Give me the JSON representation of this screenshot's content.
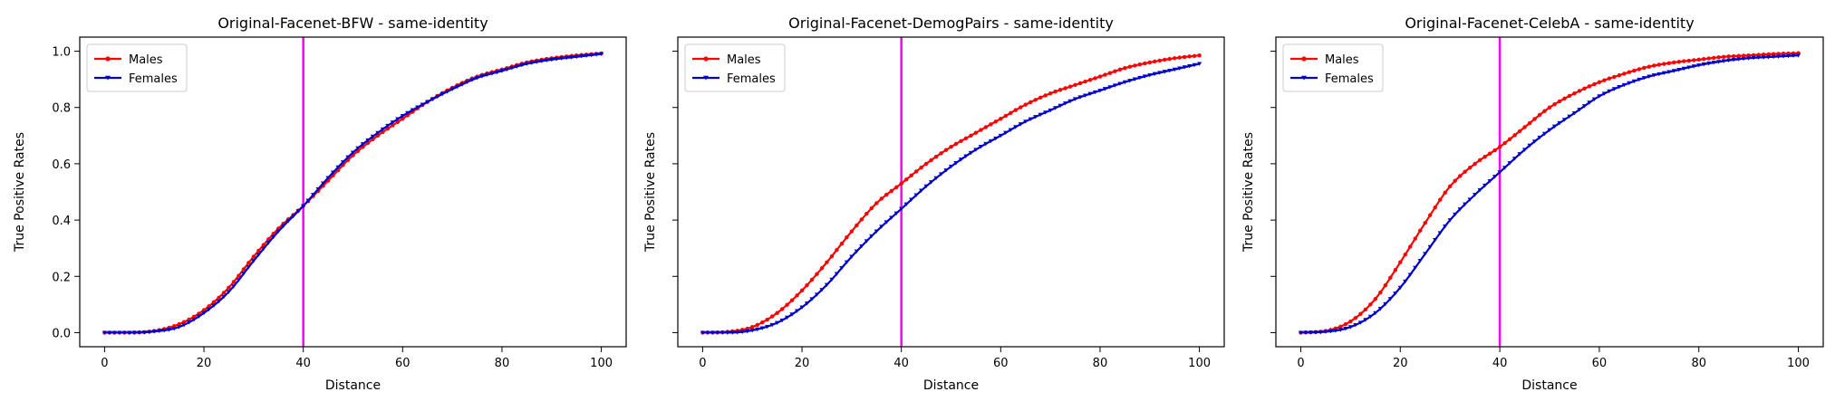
{
  "chart_data": [
    {
      "type": "line",
      "title": "Original-Facenet-BFW - same-identity",
      "xlabel": "Distance",
      "ylabel": "True Positive Rates",
      "xlim": [
        -5,
        105
      ],
      "ylim": [
        -0.05,
        1.05
      ],
      "xticks": [
        0,
        20,
        40,
        60,
        80,
        100
      ],
      "yticks": [
        0.0,
        0.2,
        0.4,
        0.6,
        0.8,
        1.0
      ],
      "show_yticklabels": true,
      "legend": "top-left",
      "threshold_line": 40,
      "x": [
        0,
        5,
        10,
        15,
        20,
        25,
        30,
        35,
        40,
        45,
        50,
        55,
        60,
        65,
        70,
        75,
        80,
        85,
        90,
        95,
        100
      ],
      "series": [
        {
          "name": "Males",
          "marker": "dot",
          "values": [
            0.0,
            0.0,
            0.006,
            0.03,
            0.08,
            0.16,
            0.27,
            0.37,
            0.45,
            0.54,
            0.63,
            0.7,
            0.76,
            0.82,
            0.87,
            0.91,
            0.935,
            0.96,
            0.975,
            0.985,
            0.992
          ]
        },
        {
          "name": "Females",
          "marker": "triangle-down",
          "values": [
            0.0,
            0.0,
            0.004,
            0.02,
            0.07,
            0.145,
            0.255,
            0.36,
            0.45,
            0.55,
            0.64,
            0.71,
            0.77,
            0.82,
            0.865,
            0.905,
            0.93,
            0.955,
            0.97,
            0.98,
            0.99
          ]
        }
      ]
    },
    {
      "type": "line",
      "title": "Original-Facenet-DemogPairs - same-identity",
      "xlabel": "Distance",
      "ylabel": "True Positive Rates",
      "xlim": [
        -5,
        105
      ],
      "ylim": [
        -0.05,
        1.05
      ],
      "xticks": [
        0,
        20,
        40,
        60,
        80,
        100
      ],
      "yticks": [
        0.0,
        0.2,
        0.4,
        0.6,
        0.8,
        1.0
      ],
      "show_yticklabels": false,
      "legend": "top-left",
      "threshold_line": 40,
      "x": [
        0,
        5,
        10,
        15,
        20,
        25,
        30,
        35,
        40,
        45,
        50,
        55,
        60,
        65,
        70,
        75,
        80,
        85,
        90,
        95,
        100
      ],
      "series": [
        {
          "name": "Males",
          "marker": "dot",
          "values": [
            0.0,
            0.003,
            0.02,
            0.07,
            0.15,
            0.25,
            0.36,
            0.46,
            0.53,
            0.6,
            0.66,
            0.71,
            0.76,
            0.81,
            0.85,
            0.88,
            0.91,
            0.94,
            0.96,
            0.975,
            0.985
          ]
        },
        {
          "name": "Females",
          "marker": "triangle-down",
          "values": [
            0.0,
            0.0,
            0.008,
            0.035,
            0.09,
            0.17,
            0.27,
            0.36,
            0.44,
            0.52,
            0.59,
            0.65,
            0.7,
            0.75,
            0.79,
            0.83,
            0.86,
            0.89,
            0.915,
            0.935,
            0.955
          ]
        }
      ]
    },
    {
      "type": "line",
      "title": "Original-Facenet-CelebA - same-identity",
      "xlabel": "Distance",
      "ylabel": "True Positive Rates",
      "xlim": [
        -5,
        105
      ],
      "ylim": [
        -0.05,
        1.05
      ],
      "xticks": [
        0,
        20,
        40,
        60,
        80,
        100
      ],
      "yticks": [
        0.0,
        0.2,
        0.4,
        0.6,
        0.8,
        1.0
      ],
      "show_yticklabels": false,
      "legend": "top-left",
      "threshold_line": 40,
      "x": [
        0,
        5,
        10,
        15,
        20,
        25,
        30,
        35,
        40,
        45,
        50,
        55,
        60,
        65,
        70,
        75,
        80,
        85,
        90,
        95,
        100
      ],
      "series": [
        {
          "name": "Males",
          "marker": "dot",
          "values": [
            0.0,
            0.006,
            0.04,
            0.12,
            0.25,
            0.39,
            0.52,
            0.6,
            0.66,
            0.73,
            0.8,
            0.85,
            0.89,
            0.92,
            0.945,
            0.96,
            0.97,
            0.98,
            0.985,
            0.99,
            0.993
          ]
        },
        {
          "name": "Females",
          "marker": "triangle-down",
          "values": [
            0.0,
            0.003,
            0.02,
            0.07,
            0.16,
            0.28,
            0.4,
            0.49,
            0.57,
            0.65,
            0.72,
            0.78,
            0.84,
            0.88,
            0.91,
            0.93,
            0.95,
            0.965,
            0.975,
            0.98,
            0.985
          ]
        }
      ]
    }
  ],
  "colors": {
    "Males": "#ff0000",
    "Females": "#0000cc",
    "threshold": "#ff00ff",
    "axis": "#000000",
    "background": "#ffffff"
  }
}
